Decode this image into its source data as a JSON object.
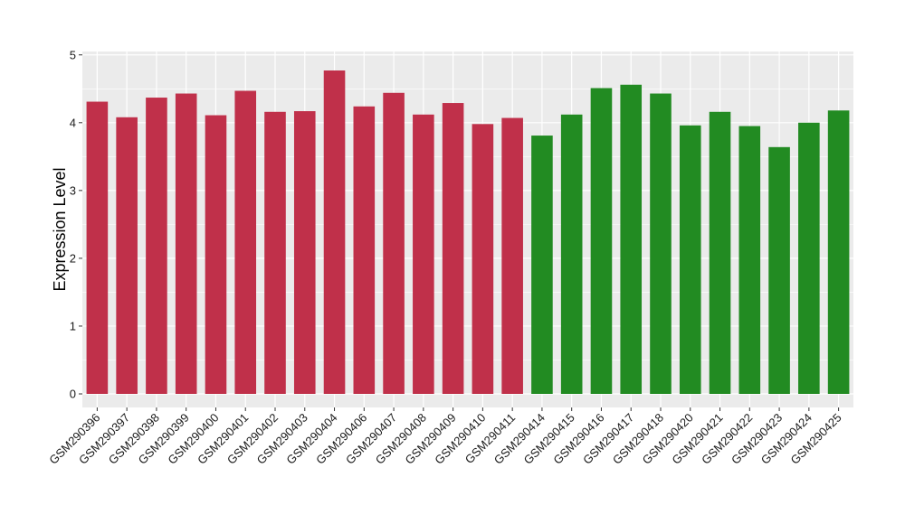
{
  "chart_data": {
    "type": "bar",
    "title": "",
    "xlabel": "",
    "ylabel": "Expression Level",
    "ylim": [
      -0.2,
      5.05
    ],
    "yticks": [
      0,
      1,
      2,
      3,
      4,
      5
    ],
    "grid": true,
    "legend": "none",
    "colors": {
      "panel": "#ebebeb",
      "grid": "#ffffff",
      "group1": "#c0304a",
      "group2": "#228b22"
    },
    "categories": [
      "GSM290396",
      "GSM290397",
      "GSM290398",
      "GSM290399",
      "GSM290400",
      "GSM290401",
      "GSM290402",
      "GSM290403",
      "GSM290404",
      "GSM290406",
      "GSM290407",
      "GSM290408",
      "GSM290409",
      "GSM290410",
      "GSM290411",
      "GSM290414",
      "GSM290415",
      "GSM290416",
      "GSM290417",
      "GSM290418",
      "GSM290420",
      "GSM290421",
      "GSM290422",
      "GSM290423",
      "GSM290424",
      "GSM290425"
    ],
    "values": [
      4.31,
      4.08,
      4.37,
      4.43,
      4.11,
      4.47,
      4.16,
      4.17,
      4.77,
      4.24,
      4.44,
      4.12,
      4.29,
      3.98,
      4.07,
      3.81,
      4.12,
      4.51,
      4.56,
      4.43,
      3.96,
      4.16,
      3.95,
      3.64,
      4.0,
      4.18
    ],
    "groups": [
      1,
      1,
      1,
      1,
      1,
      1,
      1,
      1,
      1,
      1,
      1,
      1,
      1,
      1,
      1,
      2,
      2,
      2,
      2,
      2,
      2,
      2,
      2,
      2,
      2,
      2
    ]
  }
}
